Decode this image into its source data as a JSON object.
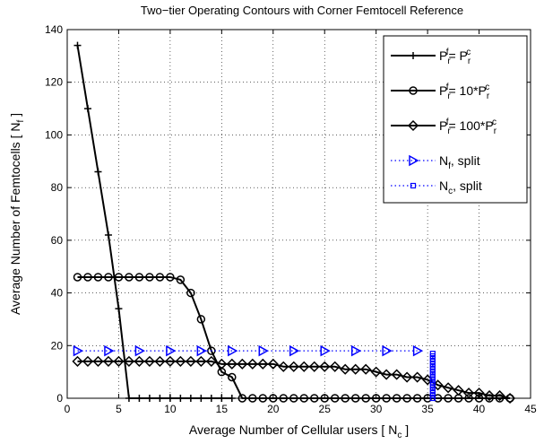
{
  "chart_data": {
    "type": "line",
    "title": "Two−tier Operating Contours with Corner Femtocell Reference",
    "xlabel": [
      {
        "t": "Average Number of Cellular users [ N"
      },
      {
        "t": "c",
        "sub": true
      },
      {
        "t": " ]"
      }
    ],
    "ylabel": [
      {
        "t": "Average Number of Femtocells [ N"
      },
      {
        "t": "f",
        "sub": true
      },
      {
        "t": " ]"
      }
    ],
    "xlim": [
      0,
      45
    ],
    "xticks": [
      0,
      5,
      10,
      15,
      20,
      25,
      30,
      35,
      40,
      45
    ],
    "ylim": [
      0,
      140
    ],
    "yticks": [
      0,
      20,
      40,
      60,
      80,
      100,
      120,
      140
    ],
    "grid": true,
    "legend": "upper right",
    "series": [
      {
        "name": [
          {
            "t": "P"
          },
          {
            "t": "r",
            "sub": true
          },
          {
            "t": "f",
            "sup": true
          },
          {
            "t": "= P"
          },
          {
            "t": "r",
            "sub": true
          },
          {
            "t": "c",
            "sup": true
          }
        ],
        "color": "#000000",
        "marker": "plus",
        "linestyle": "solid",
        "x": [
          1,
          2,
          3,
          4,
          5,
          6,
          7,
          8,
          9,
          10,
          11,
          12,
          13,
          14,
          15,
          16
        ],
        "values": [
          134,
          110,
          86,
          62,
          34,
          0,
          0,
          0,
          0,
          0,
          0,
          0,
          0,
          0,
          0,
          0
        ]
      },
      {
        "name": [
          {
            "t": "P"
          },
          {
            "t": "r",
            "sub": true
          },
          {
            "t": "f",
            "sup": true
          },
          {
            "t": "= 10*P"
          },
          {
            "t": "r",
            "sub": true
          },
          {
            "t": "c",
            "sup": true
          }
        ],
        "color": "#000000",
        "marker": "circle",
        "linestyle": "solid",
        "x": [
          1,
          2,
          3,
          4,
          5,
          6,
          7,
          8,
          9,
          10,
          11,
          12,
          13,
          14,
          15,
          16,
          17,
          18,
          19,
          20,
          21,
          22,
          23,
          24,
          25,
          26,
          27,
          28,
          29,
          30,
          31,
          32,
          33,
          34,
          35,
          36,
          37,
          38,
          39,
          40,
          41,
          42,
          43
        ],
        "values": [
          46,
          46,
          46,
          46,
          46,
          46,
          46,
          46,
          46,
          46,
          45,
          40,
          30,
          18,
          10,
          8,
          0,
          0,
          0,
          0,
          0,
          0,
          0,
          0,
          0,
          0,
          0,
          0,
          0,
          0,
          0,
          0,
          0,
          0,
          0,
          0,
          0,
          0,
          0,
          0,
          0,
          0,
          0
        ]
      },
      {
        "name": [
          {
            "t": "P"
          },
          {
            "t": "r",
            "sub": true
          },
          {
            "t": "f",
            "sup": true
          },
          {
            "t": "= 100*P"
          },
          {
            "t": "r",
            "sub": true
          },
          {
            "t": "c",
            "sup": true
          }
        ],
        "color": "#000000",
        "marker": "diamond",
        "linestyle": "solid",
        "x": [
          1,
          2,
          3,
          4,
          5,
          6,
          7,
          8,
          9,
          10,
          11,
          12,
          13,
          14,
          15,
          16,
          17,
          18,
          19,
          20,
          21,
          22,
          23,
          24,
          25,
          26,
          27,
          28,
          29,
          30,
          31,
          32,
          33,
          34,
          35,
          36,
          37,
          38,
          39,
          40,
          41,
          42,
          43
        ],
        "values": [
          14,
          14,
          14,
          14,
          14,
          14,
          14,
          14,
          14,
          14,
          14,
          14,
          14,
          14,
          13,
          13,
          13,
          13,
          13,
          13,
          12,
          12,
          12,
          12,
          12,
          12,
          11,
          11,
          11,
          10,
          9,
          9,
          8,
          8,
          7,
          5,
          4,
          3,
          2,
          2,
          1,
          1,
          0
        ]
      },
      {
        "name": [
          {
            "t": "N"
          },
          {
            "t": "f",
            "sub": true
          },
          {
            "t": ", split"
          }
        ],
        "color": "#0000ff",
        "marker": "triangle-right",
        "linestyle": "dotted",
        "x": [
          1,
          4,
          7,
          10,
          13,
          16,
          19,
          22,
          25,
          28,
          31,
          34
        ],
        "values": [
          18,
          18,
          18,
          18,
          18,
          18,
          18,
          18,
          18,
          18,
          18,
          18
        ]
      },
      {
        "name": [
          {
            "t": "N"
          },
          {
            "t": "c",
            "sub": true
          },
          {
            "t": ", split"
          }
        ],
        "color": "#0000ff",
        "marker": "square",
        "linestyle": "dotted",
        "x": [
          35.5,
          35.5,
          35.5,
          35.5,
          35.5,
          35.5,
          35.5,
          35.5,
          35.5,
          35.5,
          35.5,
          35.5,
          35.5,
          35.5,
          35.5,
          35.5,
          35.5,
          35.5
        ],
        "values": [
          0,
          1,
          2,
          3,
          4,
          5,
          6,
          7,
          8,
          9,
          10,
          11,
          12,
          13,
          14,
          15,
          16,
          17
        ]
      }
    ]
  }
}
